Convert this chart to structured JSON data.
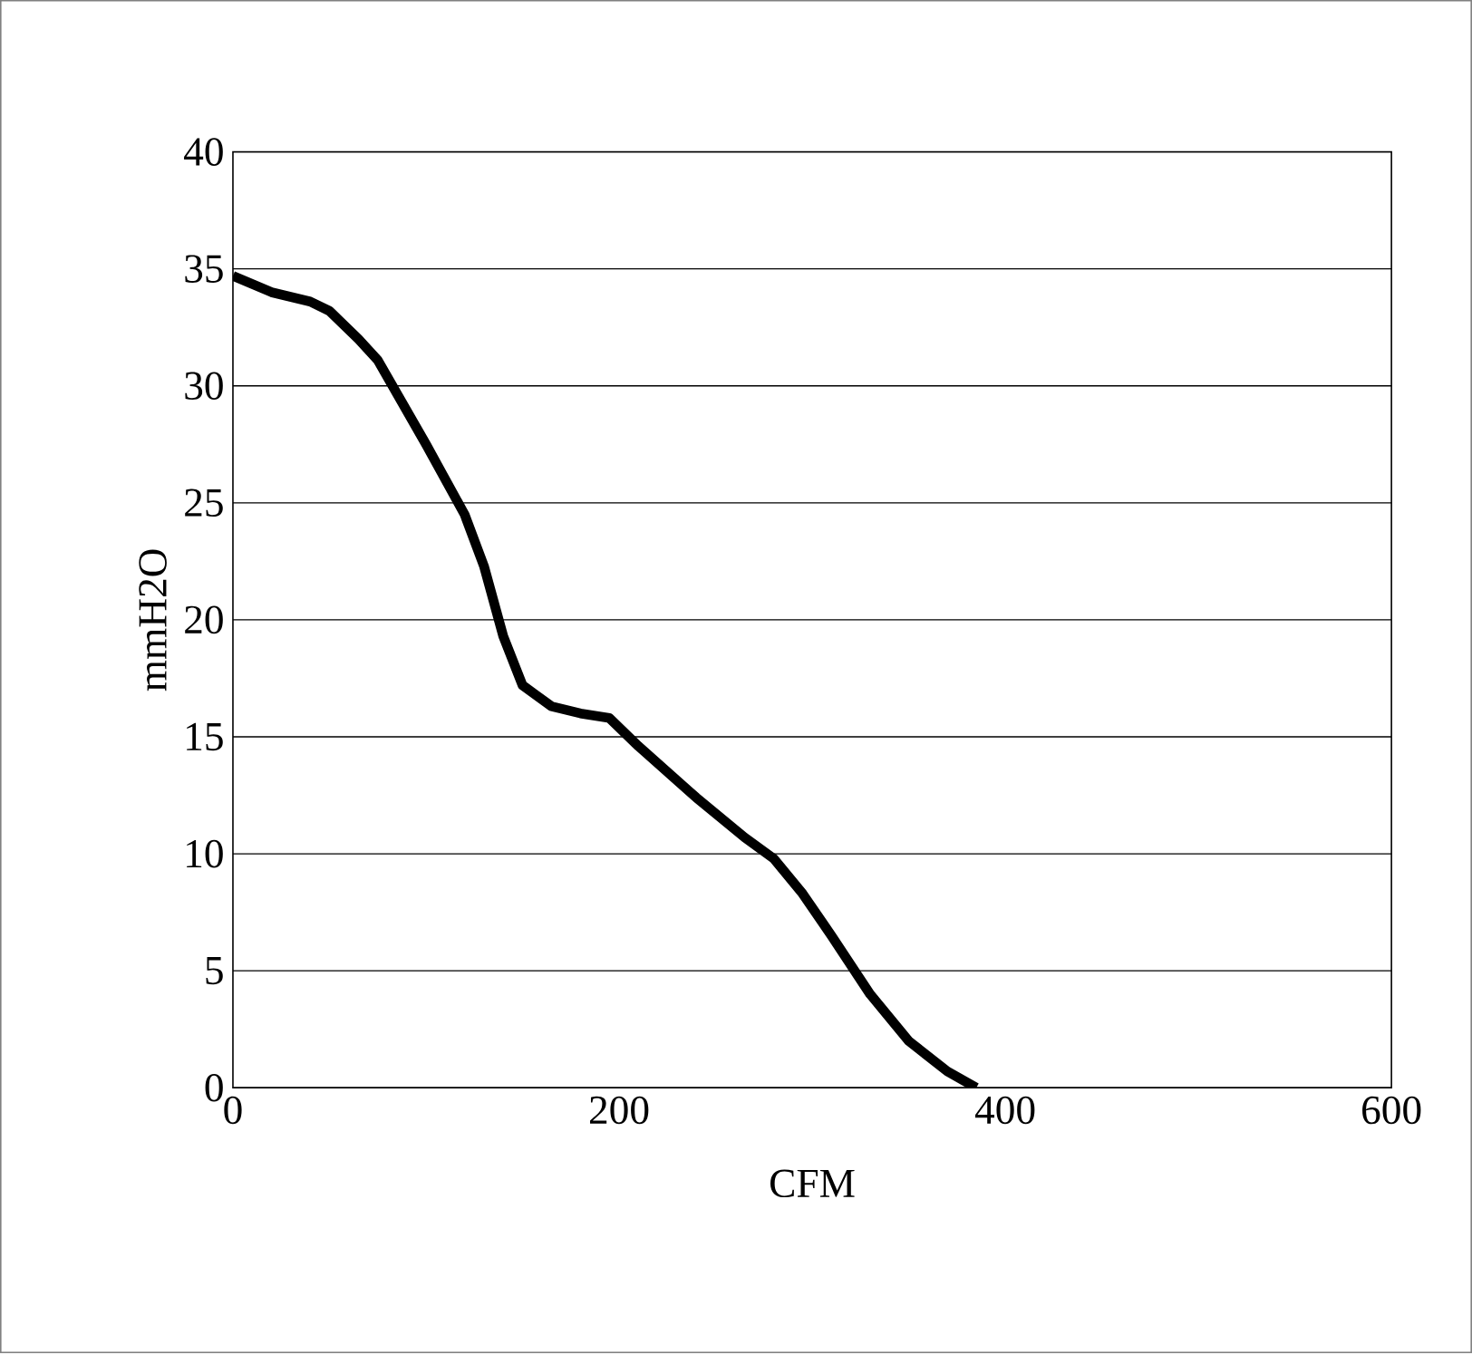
{
  "chart_data": {
    "type": "line",
    "xlabel": "CFM",
    "ylabel": "mmH2O",
    "xlim": [
      0,
      600
    ],
    "ylim": [
      0,
      40
    ],
    "xticks": [
      0,
      200,
      400,
      600
    ],
    "yticks": [
      0,
      5,
      10,
      15,
      20,
      25,
      30,
      35,
      40
    ],
    "grid": "y",
    "marker": "none",
    "line_style": "solid",
    "series": [
      {
        "color": "#000000",
        "x": [
          0,
          20,
          40,
          50,
          65,
          75,
          100,
          120,
          130,
          140,
          150,
          165,
          180,
          195,
          210,
          240,
          265,
          280,
          295,
          310,
          330,
          350,
          370,
          385
        ],
        "values": [
          34.7,
          34.0,
          33.6,
          33.2,
          32.0,
          31.1,
          27.5,
          24.5,
          22.3,
          19.3,
          17.2,
          16.3,
          16.0,
          15.8,
          14.6,
          12.4,
          10.7,
          9.8,
          8.3,
          6.5,
          4.0,
          2.0,
          0.7,
          0
        ]
      }
    ]
  }
}
